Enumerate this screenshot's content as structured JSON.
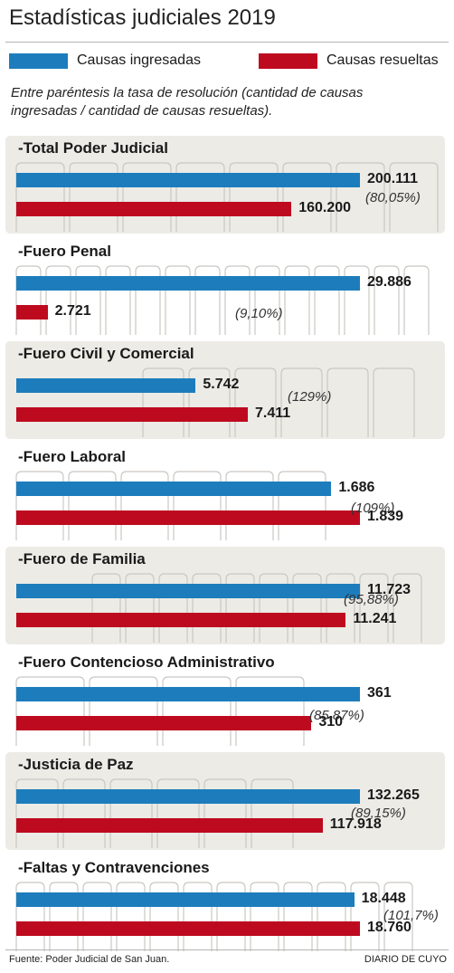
{
  "chart_data": {
    "type": "bar",
    "title": "Estadísticas judiciales 2019",
    "note": "Entre paréntesis la tasa de resolución (cantidad de causas ingresadas / cantidad de causas resueltas).",
    "legend": [
      {
        "name": "Causas ingresadas",
        "color": "#1d7dbc"
      },
      {
        "name": "Causas resueltas",
        "color": "#be0a1f"
      }
    ],
    "legend_position": "top",
    "panels": [
      {
        "label": "-Total Poder Judicial",
        "ingresadas": 200111,
        "resueltas": 160200,
        "ingresadas_label": "200.111",
        "resueltas_label": "160.200",
        "rate": "(80,05%)",
        "xmax": 200111
      },
      {
        "label": "-Fuero Penal",
        "ingresadas": 29886,
        "resueltas": 2721,
        "ingresadas_label": "29.886",
        "resueltas_label": "2.721",
        "rate": "(9,10%)",
        "xmax": 29886
      },
      {
        "label": "-Fuero Civil y Comercial",
        "ingresadas": 5742,
        "resueltas": 7411,
        "ingresadas_label": "5.742",
        "resueltas_label": "7.411",
        "rate": "(129%)",
        "xmax": 11000
      },
      {
        "label": "-Fuero Laboral",
        "ingresadas": 1686,
        "resueltas": 1839,
        "ingresadas_label": "1.686",
        "resueltas_label": "1.839",
        "rate": "(109%)",
        "xmax": 1839
      },
      {
        "label": "-Fuero de Familia",
        "ingresadas": 11723,
        "resueltas": 11241,
        "ingresadas_label": "11.723",
        "resueltas_label": "11.241",
        "rate": "(95,88%)",
        "xmax": 11723
      },
      {
        "label": "-Fuero Contencioso Administrativo",
        "ingresadas": 361,
        "resueltas": 310,
        "ingresadas_label": "361",
        "resueltas_label": "310",
        "rate": "(85,87%)",
        "xmax": 361
      },
      {
        "label": "-Justicia de Paz",
        "ingresadas": 132265,
        "resueltas": 117918,
        "ingresadas_label": "132.265",
        "resueltas_label": "117.918",
        "rate": "(89,15%)",
        "xmax": 132265
      },
      {
        "label": "-Faltas y Contravenciones",
        "ingresadas": 18448,
        "resueltas": 18760,
        "ingresadas_label": "18.448",
        "resueltas_label": "18.760",
        "rate": "(101,7%)",
        "xmax": 18760
      }
    ]
  },
  "footer": {
    "source": "Fuente: Poder Judicial de San Juan.",
    "brand": "DIARIO DE CUYO"
  }
}
